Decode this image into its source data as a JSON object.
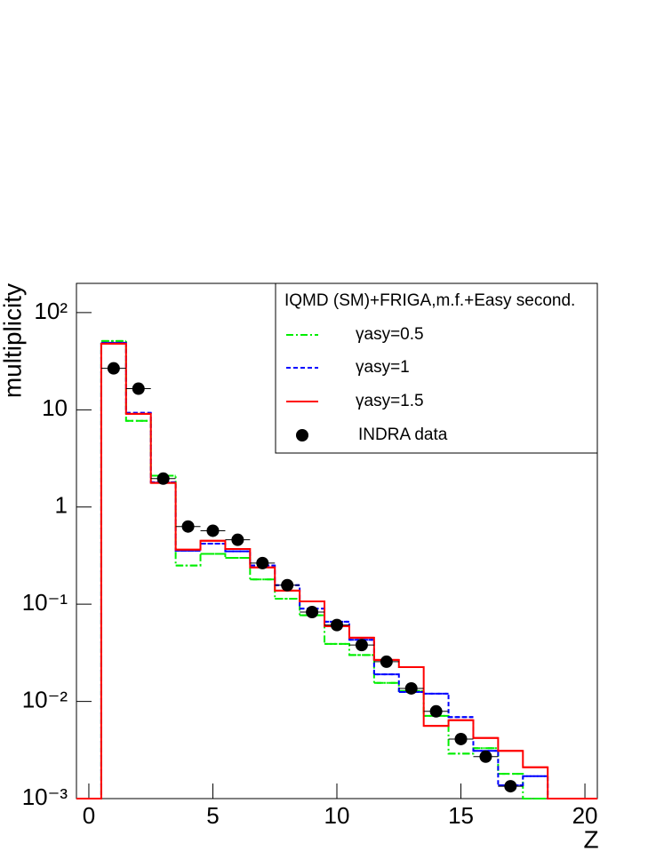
{
  "chart_data": {
    "type": "histogram",
    "xlabel": "Z",
    "ylabel": "multiplicity",
    "legend_title": "IQMD (SM)+FRIGA,m.f.+Easy second.",
    "legend": "top-right",
    "yscale": "log",
    "xlim": [
      -0.5,
      20.5
    ],
    "ylim": [
      0.001,
      200
    ],
    "xticks": [
      0,
      5,
      10,
      15,
      20
    ],
    "yticks": [
      {
        "value": 100,
        "label": "10²"
      },
      10,
      1,
      {
        "value": 0.1,
        "label": "10⁻¹"
      },
      {
        "value": 0.01,
        "label": "10⁻²"
      },
      {
        "value": 0.001,
        "label": "10⁻³"
      }
    ],
    "bins": [
      -0.5,
      0.5,
      1.5,
      2.5,
      3.5,
      4.5,
      5.5,
      6.5,
      7.5,
      8.5,
      9.5,
      10.5,
      11.5,
      12.5,
      13.5,
      14.5,
      15.5,
      16.5,
      17.5,
      18.5,
      19.5,
      20.5
    ],
    "series": [
      {
        "name": "γasy=0.5",
        "color": "#00ee00",
        "dash": "dashdot",
        "values": [
          0,
          51,
          7.7,
          2.1,
          0.25,
          0.33,
          0.3,
          0.18,
          0.114,
          0.077,
          0.039,
          0.03,
          0.0155,
          0.0128,
          0.0071,
          0.0029,
          0.0033,
          0.0018,
          0.001,
          0.001,
          0.001
        ]
      },
      {
        "name": "γasy=1",
        "color": "#0000ff",
        "dash": "dashed",
        "values": [
          0,
          49,
          9.3,
          1.8,
          0.355,
          0.42,
          0.35,
          0.25,
          0.157,
          0.09,
          0.066,
          0.043,
          0.019,
          0.0125,
          0.012,
          0.0069,
          0.0031,
          0.00137,
          0.0017,
          0.001,
          0.001
        ]
      },
      {
        "name": "γasy=1.5",
        "color": "#ff0000",
        "dash": "solid",
        "values": [
          0,
          48,
          9.1,
          1.77,
          0.364,
          0.45,
          0.37,
          0.239,
          0.138,
          0.107,
          0.0594,
          0.0452,
          0.0267,
          0.0225,
          0.0056,
          0.0064,
          0.0042,
          0.0031,
          0.0021,
          0.001,
          0.001
        ]
      }
    ],
    "points": {
      "name": "INDRA data",
      "color": "#000000",
      "x": [
        1,
        2,
        3,
        4,
        5,
        6,
        7,
        8,
        9,
        10,
        11,
        12,
        13,
        14,
        15,
        16,
        17
      ],
      "values": [
        26.7,
        16.5,
        1.96,
        0.63,
        0.57,
        0.46,
        0.265,
        0.157,
        0.083,
        0.061,
        0.038,
        0.0256,
        0.0136,
        0.0079,
        0.0041,
        0.0027,
        0.00134
      ]
    }
  }
}
